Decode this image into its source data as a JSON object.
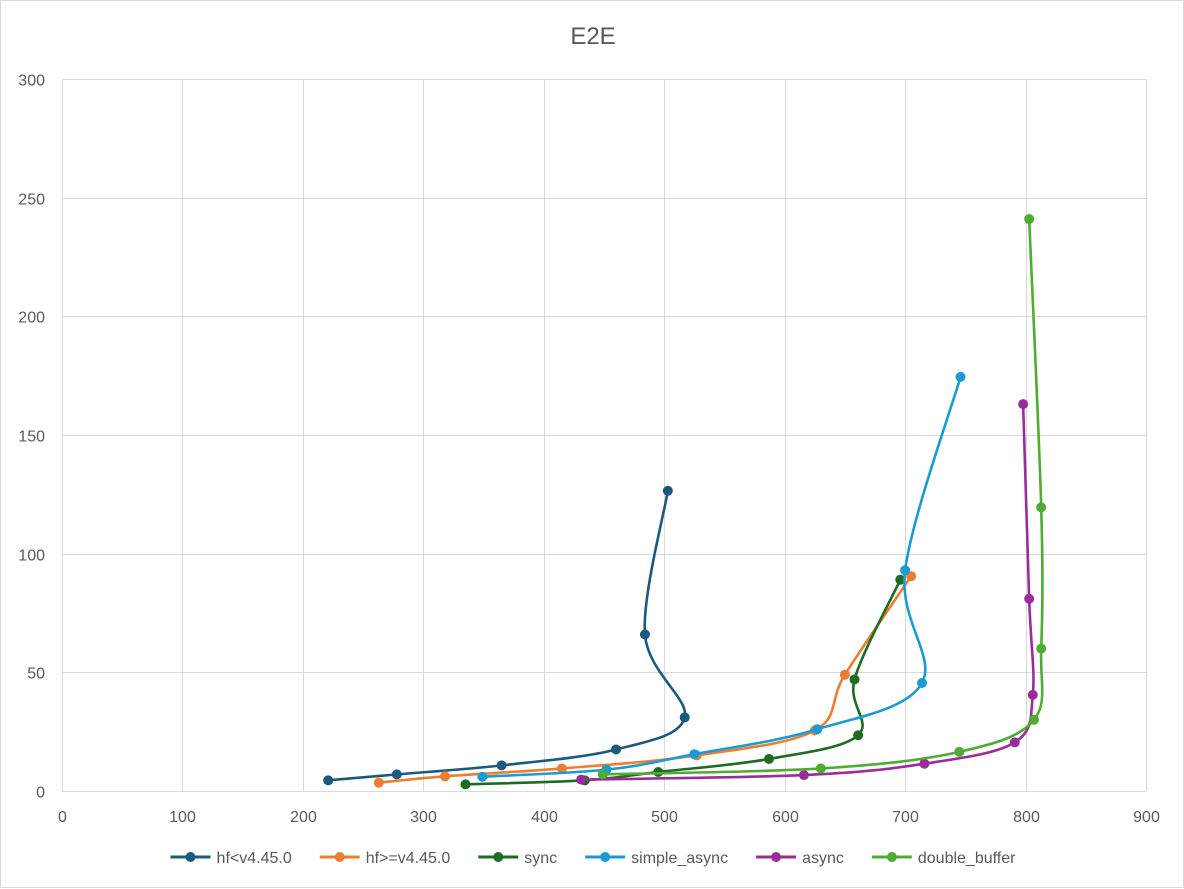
{
  "chart_data": {
    "type": "line",
    "title": "E2E",
    "xlabel": "",
    "ylabel": "",
    "xlim": [
      0,
      900
    ],
    "ylim": [
      0,
      300
    ],
    "x_ticks": [
      0,
      100,
      200,
      300,
      400,
      500,
      600,
      700,
      800,
      900
    ],
    "y_ticks": [
      0,
      50,
      100,
      150,
      200,
      250,
      300
    ],
    "grid": true,
    "legend_position": "bottom",
    "smooth": true,
    "series": [
      {
        "name": "hf<v4.45.0",
        "color": "#1b5a7e",
        "points": [
          [
            221,
            4.5
          ],
          [
            278,
            7
          ],
          [
            365,
            10.8
          ],
          [
            460,
            17.5
          ],
          [
            517,
            31
          ],
          [
            484,
            66
          ],
          [
            503,
            126.5
          ]
        ]
      },
      {
        "name": "hf>=v4.45.0",
        "color": "#ed7d31",
        "points": [
          [
            263,
            3.5
          ],
          [
            318,
            6.2
          ],
          [
            415,
            9.5
          ],
          [
            527,
            15
          ],
          [
            625,
            25.5
          ],
          [
            650,
            49
          ],
          [
            705,
            90.5
          ]
        ]
      },
      {
        "name": "sync",
        "color": "#1e6b24",
        "points": [
          [
            335,
            2.8
          ],
          [
            434,
            4.5
          ],
          [
            495,
            8
          ],
          [
            587,
            13.5
          ],
          [
            661,
            23.5
          ],
          [
            658,
            47
          ],
          [
            696,
            89
          ]
        ]
      },
      {
        "name": "simple_async",
        "color": "#1a9bd4",
        "points": [
          [
            349,
            6
          ],
          [
            452,
            9
          ],
          [
            525,
            15.5
          ],
          [
            627,
            26
          ],
          [
            714,
            45.5
          ],
          [
            700,
            93
          ],
          [
            746,
            174.5
          ]
        ]
      },
      {
        "name": "async",
        "color": "#9b2d9b",
        "points": [
          [
            431,
            4.8
          ],
          [
            616,
            6.7
          ],
          [
            716,
            11.5
          ],
          [
            791,
            20.5
          ],
          [
            806,
            40.5
          ],
          [
            803,
            81
          ],
          [
            798,
            163
          ]
        ]
      },
      {
        "name": "double_buffer",
        "color": "#4eac33",
        "points": [
          [
            449,
            7
          ],
          [
            630,
            9.5
          ],
          [
            745,
            16.5
          ],
          [
            807,
            30
          ],
          [
            813,
            60
          ],
          [
            813,
            119.5
          ],
          [
            803,
            241
          ]
        ]
      }
    ]
  }
}
